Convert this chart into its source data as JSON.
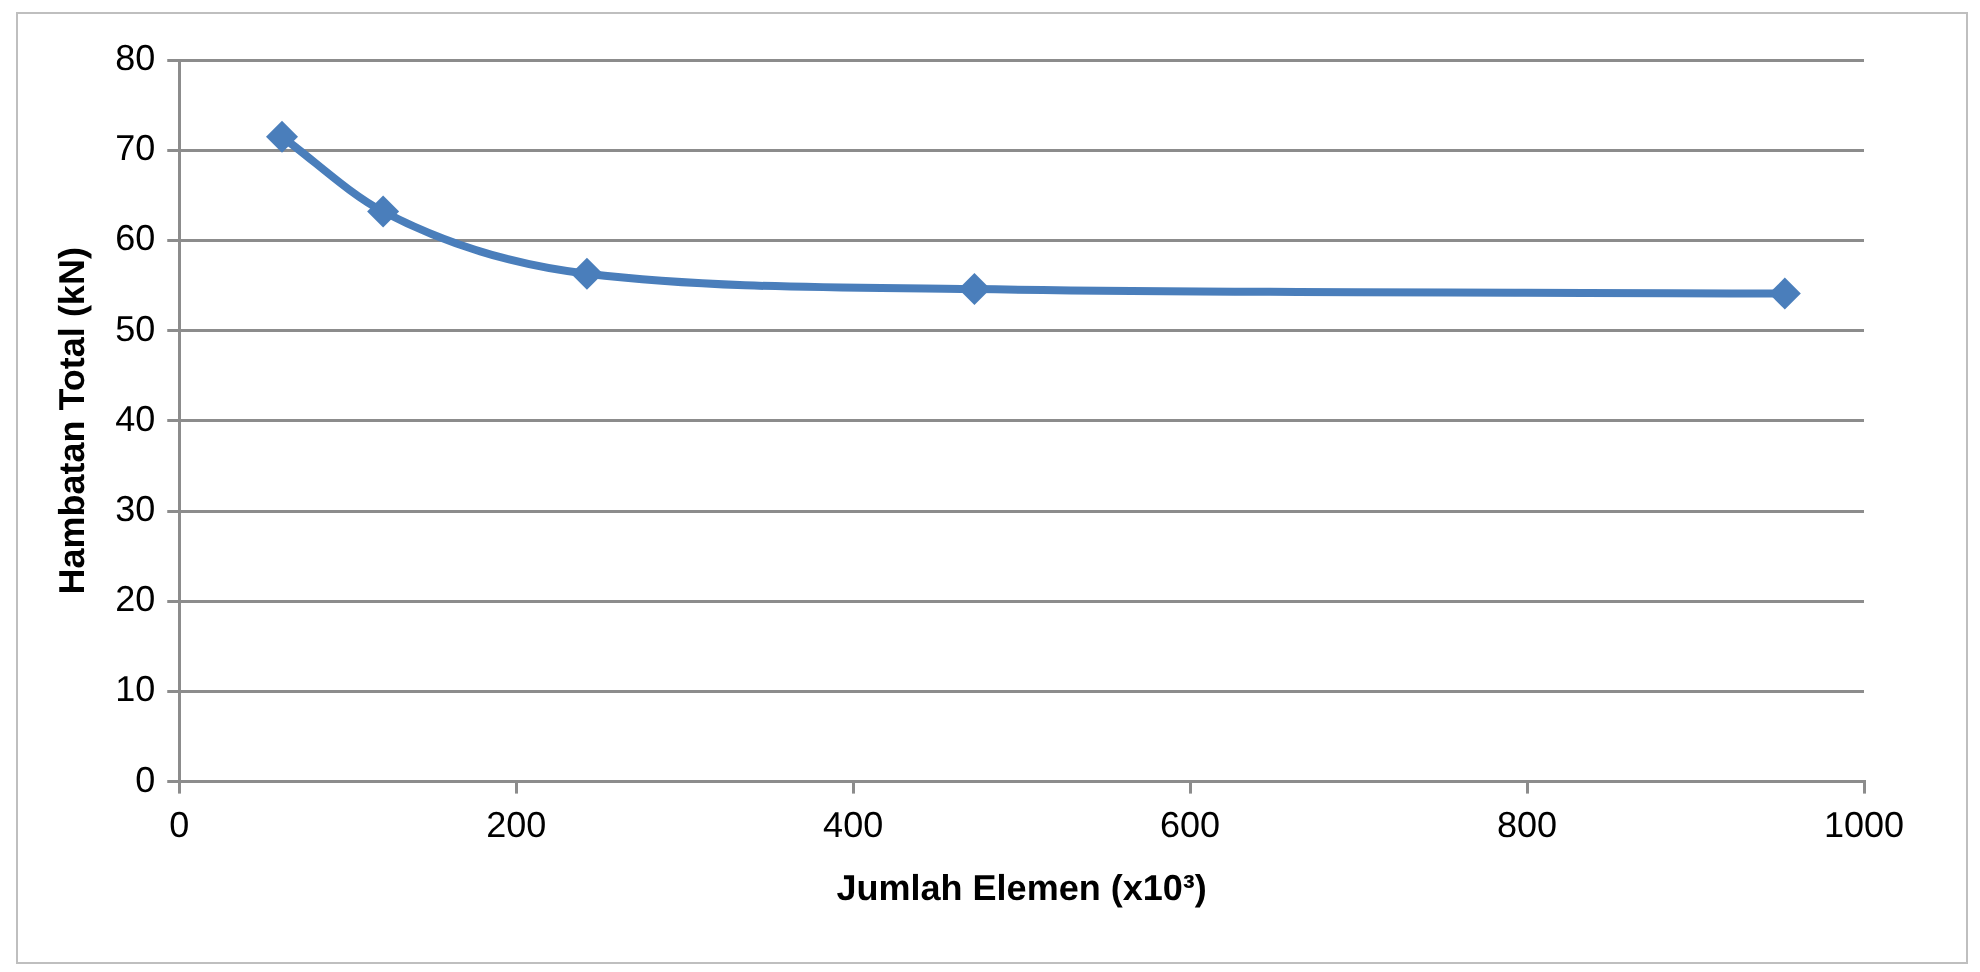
{
  "chart_data": {
    "type": "line",
    "xlabel": "Jumlah Elemen (x10³)",
    "ylabel": "Hambatan Total (kN)",
    "x": [
      61,
      121,
      242,
      472,
      953
    ],
    "series": [
      {
        "color": "#4a7ebb",
        "values": [
          71.5,
          63.2,
          56.3,
          54.6,
          54.1
        ]
      }
    ],
    "xlim": [
      0,
      1000
    ],
    "xticks": [
      0,
      200,
      400,
      600,
      800,
      1000
    ],
    "ylim": [
      0,
      80
    ],
    "yticks": [
      0,
      10,
      20,
      30,
      40,
      50,
      60,
      70,
      80
    ],
    "grid": "y",
    "legend": false,
    "marker": "diamond",
    "line_style": "solid"
  }
}
